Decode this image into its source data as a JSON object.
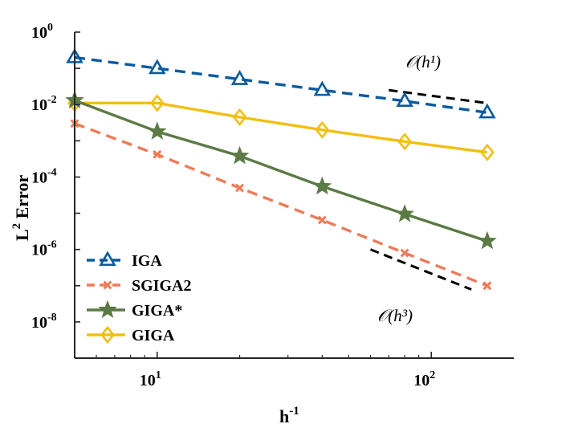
{
  "chart_data": {
    "type": "line",
    "title": "",
    "xlabel": {
      "base": "h",
      "sup": "-1"
    },
    "ylabel": {
      "base": "L",
      "sup": "2",
      "rest": " Error"
    },
    "xscale": "log",
    "yscale": "log",
    "xlim": [
      5,
      200
    ],
    "ylim": [
      1e-09,
      1
    ],
    "grid": false,
    "legend_position": "bottom-left",
    "x_ticks": [
      {
        "value": 10,
        "base": "10",
        "sup": "1"
      },
      {
        "value": 100,
        "base": "10",
        "sup": "2"
      }
    ],
    "y_ticks": [
      {
        "value": 1,
        "base": "10",
        "sup": "0"
      },
      {
        "value": 0.01,
        "base": "10",
        "sup": "-2"
      },
      {
        "value": 0.0001,
        "base": "10",
        "sup": "-4"
      },
      {
        "value": 1e-06,
        "base": "10",
        "sup": "-6"
      },
      {
        "value": 1e-08,
        "base": "10",
        "sup": "-8"
      }
    ],
    "x": [
      5,
      10,
      20,
      40,
      80,
      160
    ],
    "series": [
      {
        "name": "IGA",
        "color": "#0A5AA0",
        "dash": true,
        "marker": "triangle",
        "values": [
          0.2,
          0.1,
          0.05,
          0.025,
          0.0125,
          0.006
        ]
      },
      {
        "name": "SGIGA2",
        "color": "#EE7B57",
        "dash": true,
        "marker": "x",
        "values": [
          0.003,
          0.00042,
          5e-05,
          6.5e-06,
          8e-07,
          1e-07
        ]
      },
      {
        "name": "GIGA*",
        "color": "#5C7A44",
        "dash": false,
        "marker": "star",
        "values": [
          0.013,
          0.0018,
          0.00038,
          5.5e-05,
          9.5e-06,
          1.7e-06
        ]
      },
      {
        "name": "GIGA",
        "color": "#F2BF10",
        "dash": false,
        "marker": "diamond",
        "values": [
          0.011,
          0.011,
          0.0045,
          0.002,
          0.00095,
          0.00048
        ]
      }
    ],
    "annotations": [
      {
        "label": "𝒪(h¹)",
        "slope": 1,
        "x_range": [
          70,
          160
        ],
        "anchor_y": 0.025
      },
      {
        "label": "𝒪(h³)",
        "slope": 3,
        "x_range": [
          60,
          140
        ],
        "anchor_y": 1e-06
      }
    ]
  }
}
